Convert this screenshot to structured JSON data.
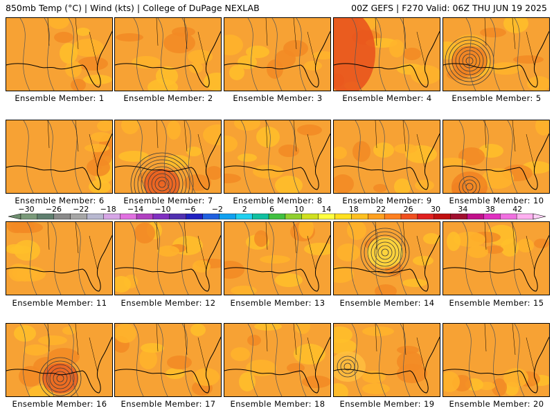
{
  "header": {
    "left": "850mb Temp (°C) | Wind (kts) | College of DuPage NEXLAB",
    "right": "00Z GEFS | F270 Valid: 06Z THU JUN 19 2025"
  },
  "panels": [
    {
      "label": "Ensemble Member: 1"
    },
    {
      "label": "Ensemble Member: 2"
    },
    {
      "label": "Ensemble Member: 3"
    },
    {
      "label": "Ensemble Member: 4"
    },
    {
      "label": "Ensemble Member: 5"
    },
    {
      "label": "Ensemble Member: 6"
    },
    {
      "label": "Ensemble Member: 7"
    },
    {
      "label": "Ensemble Member: 8"
    },
    {
      "label": "Ensemble Member: 9"
    },
    {
      "label": "Ensemble Member: 10"
    },
    {
      "label": "Ensemble Member: 11"
    },
    {
      "label": "Ensemble Member: 12"
    },
    {
      "label": "Ensemble Member: 13"
    },
    {
      "label": "Ensemble Member: 14"
    },
    {
      "label": "Ensemble Member: 15"
    },
    {
      "label": "Ensemble Member: 16"
    },
    {
      "label": "Ensemble Member: 17"
    },
    {
      "label": "Ensemble Member: 18"
    },
    {
      "label": "Ensemble Member: 19"
    },
    {
      "label": "Ensemble Member: 20"
    }
  ],
  "colorbar": {
    "ticks": [
      "−30",
      "−26",
      "−22",
      "−18",
      "−14",
      "−10",
      "−6",
      "−2",
      "2",
      "6",
      "10",
      "14",
      "18",
      "22",
      "26",
      "30",
      "34",
      "38",
      "42"
    ],
    "colors": [
      "#7a9a7a",
      "#5f7f6f",
      "#8a8a8a",
      "#a6a6a6",
      "#b8b8d0",
      "#d6a6e6",
      "#e070e0",
      "#b040c0",
      "#8030c0",
      "#5030b0",
      "#2020c0",
      "#2060e0",
      "#10a0f0",
      "#20d0f0",
      "#10c0a0",
      "#40c040",
      "#90d030",
      "#d0e020",
      "#ffff40",
      "#ffe020",
      "#ffc020",
      "#ffa020",
      "#ff8020",
      "#f05020",
      "#e02020",
      "#c01010",
      "#a01030",
      "#c0108a",
      "#e030c0",
      "#f070e0",
      "#ffb0f0"
    ]
  }
}
